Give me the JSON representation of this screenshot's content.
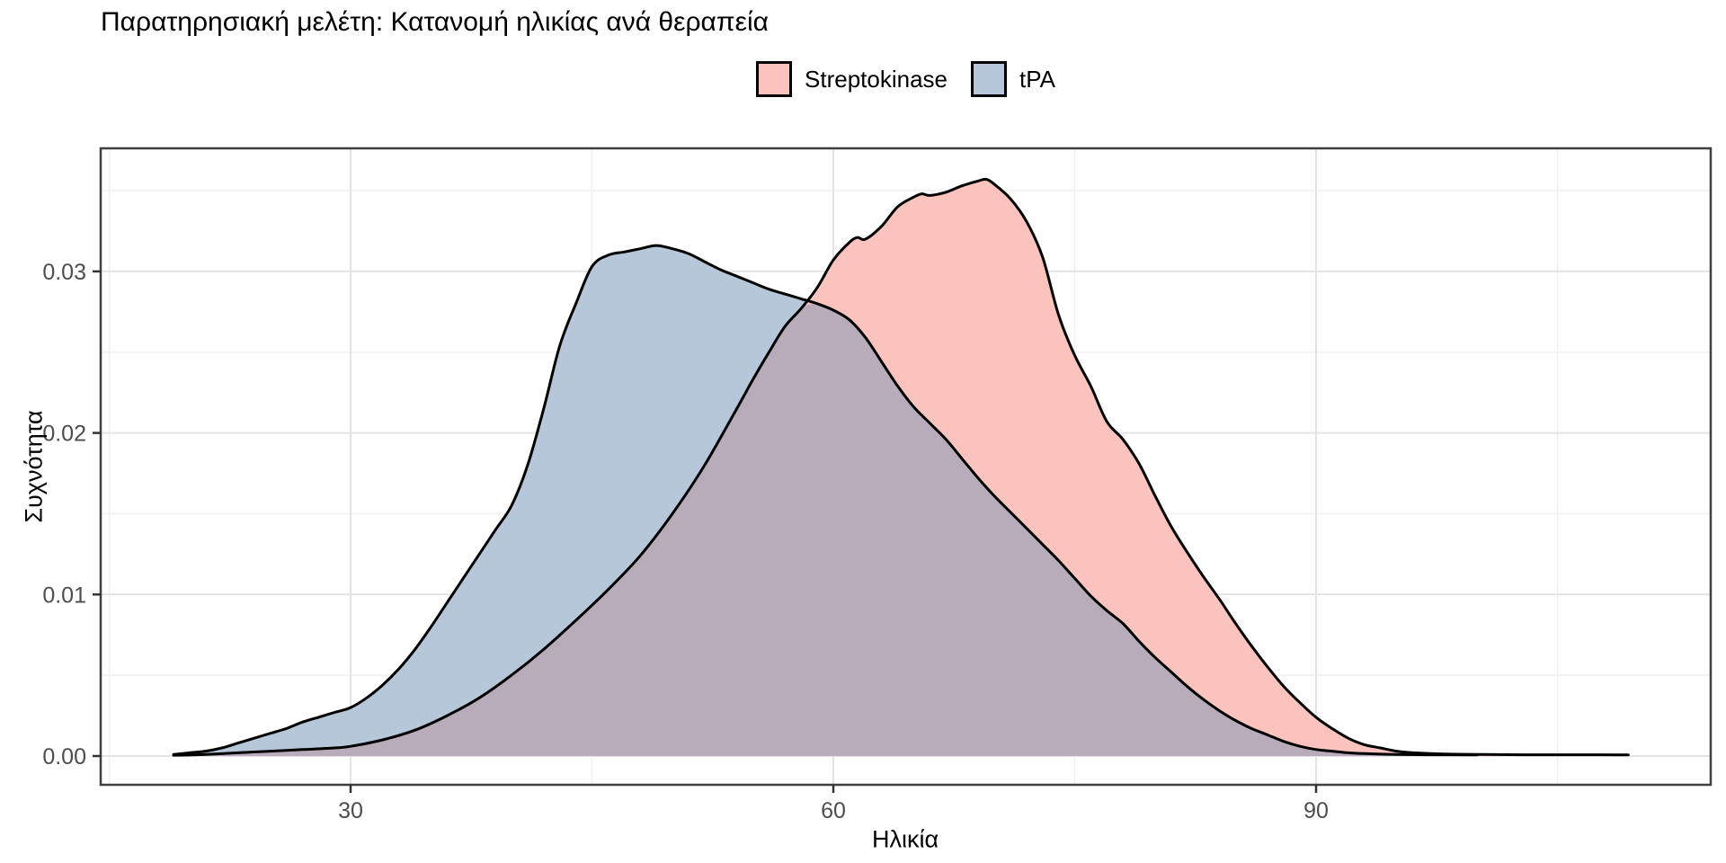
{
  "title": "Παρατηρησιακή μελέτη: Κατανομή ηλικίας ανά θεραπεία",
  "legend": {
    "items": [
      {
        "label": "Streptokinase",
        "color": "#FAC3BD"
      },
      {
        "label": "tPA",
        "color": "#B6C7D9"
      }
    ]
  },
  "axes": {
    "x": {
      "title": "Ηλικία",
      "tick_labels": [
        "30",
        "60",
        "90"
      ]
    },
    "y": {
      "title": "Συχνότητα",
      "tick_labels": [
        "0.00",
        "0.01",
        "0.02",
        "0.03"
      ]
    }
  },
  "colors": {
    "fill_streptokinase": "#FAC3BD",
    "fill_tpa": "#B6C7D9",
    "fill_overlap": "#B8ABBA",
    "curve_stroke": "#000000",
    "grid_major": "#E4E4E4",
    "grid_minor": "#F1F1F1",
    "panel_border": "#3F3F3F",
    "tick_mark": "#333333",
    "tick_label": "#4D4D4D"
  },
  "chart_data": {
    "type": "area",
    "subtype": "density",
    "title": "Παρατηρησιακή μελέτη: Κατανομή ηλικίας ανά θεραπεία",
    "xlabel": "Ηλικία",
    "ylabel": "Συχνότητα",
    "xlim": [
      14.5,
      114.6
    ],
    "ylim": [
      0,
      0.0375
    ],
    "x_ticks": [
      30,
      60,
      90
    ],
    "x_minor_ticks": [
      15,
      45,
      75,
      105
    ],
    "y_ticks": [
      0,
      0.01,
      0.02,
      0.03
    ],
    "y_minor_ticks": [
      0.005,
      0.015,
      0.025,
      0.035
    ],
    "grid": true,
    "legend_position": "top",
    "series": [
      {
        "name": "tPA",
        "peak": {
          "x": 49,
          "y": 0.0316
        },
        "points": [
          [
            19,
            0.0001
          ],
          [
            20,
            0.0002
          ],
          [
            21,
            0.0003
          ],
          [
            22,
            0.0005
          ],
          [
            23,
            0.0008
          ],
          [
            24,
            0.0011
          ],
          [
            25,
            0.0014
          ],
          [
            26,
            0.0017
          ],
          [
            27,
            0.0021
          ],
          [
            28,
            0.0024
          ],
          [
            29,
            0.0027
          ],
          [
            30,
            0.003
          ],
          [
            31,
            0.0036
          ],
          [
            32,
            0.0044
          ],
          [
            33,
            0.0054
          ],
          [
            34,
            0.0066
          ],
          [
            35,
            0.008
          ],
          [
            36,
            0.0095
          ],
          [
            37,
            0.011
          ],
          [
            38,
            0.0125
          ],
          [
            39,
            0.014
          ],
          [
            40,
            0.0155
          ],
          [
            41,
            0.018
          ],
          [
            42,
            0.0215
          ],
          [
            43,
            0.0254
          ],
          [
            44,
            0.028
          ],
          [
            45,
            0.0303
          ],
          [
            46,
            0.031
          ],
          [
            47,
            0.0312
          ],
          [
            48,
            0.0314
          ],
          [
            49,
            0.0316
          ],
          [
            50,
            0.0314
          ],
          [
            51,
            0.0311
          ],
          [
            52,
            0.0306
          ],
          [
            53,
            0.0301
          ],
          [
            54,
            0.0297
          ],
          [
            55,
            0.0293
          ],
          [
            56,
            0.0289
          ],
          [
            57,
            0.0286
          ],
          [
            58,
            0.0283
          ],
          [
            59,
            0.028
          ],
          [
            60,
            0.0276
          ],
          [
            61,
            0.027
          ],
          [
            62,
            0.0259
          ],
          [
            63,
            0.0244
          ],
          [
            64,
            0.0229
          ],
          [
            65,
            0.0216
          ],
          [
            66,
            0.0206
          ],
          [
            67,
            0.0196
          ],
          [
            68,
            0.0184
          ],
          [
            69,
            0.0172
          ],
          [
            70,
            0.0161
          ],
          [
            71,
            0.0151
          ],
          [
            72,
            0.0141
          ],
          [
            73,
            0.0131
          ],
          [
            74,
            0.0121
          ],
          [
            75,
            0.011
          ],
          [
            76,
            0.0099
          ],
          [
            77,
            0.009
          ],
          [
            78,
            0.0082
          ],
          [
            79,
            0.0071
          ],
          [
            80,
            0.0061
          ],
          [
            81,
            0.0052
          ],
          [
            82,
            0.0043
          ],
          [
            83,
            0.0035
          ],
          [
            84,
            0.0028
          ],
          [
            85,
            0.0022
          ],
          [
            86,
            0.0017
          ],
          [
            87,
            0.0013
          ],
          [
            88,
            0.0009
          ],
          [
            89,
            0.0006
          ],
          [
            90,
            0.0004
          ],
          [
            91,
            0.0003
          ],
          [
            92,
            0.0002
          ],
          [
            93,
            0.00015
          ],
          [
            95,
            0.0001
          ],
          [
            97,
            8e-05
          ],
          [
            100,
            7e-05
          ]
        ]
      },
      {
        "name": "Streptokinase",
        "peak": {
          "x": 69.5,
          "y": 0.0357
        },
        "points": [
          [
            19,
            5e-05
          ],
          [
            21,
            0.0001
          ],
          [
            23,
            0.0002
          ],
          [
            25,
            0.0003
          ],
          [
            27,
            0.0004
          ],
          [
            29,
            0.0005
          ],
          [
            30,
            0.0006
          ],
          [
            32,
            0.001
          ],
          [
            34,
            0.0016
          ],
          [
            36,
            0.0025
          ],
          [
            38,
            0.0036
          ],
          [
            40,
            0.005
          ],
          [
            42,
            0.0066
          ],
          [
            44,
            0.0084
          ],
          [
            46,
            0.0103
          ],
          [
            48,
            0.0124
          ],
          [
            50,
            0.015
          ],
          [
            52,
            0.018
          ],
          [
            54,
            0.0215
          ],
          [
            55,
            0.0233
          ],
          [
            56,
            0.025
          ],
          [
            57,
            0.0266
          ],
          [
            58,
            0.0277
          ],
          [
            59,
            0.029
          ],
          [
            60,
            0.0307
          ],
          [
            61,
            0.0318
          ],
          [
            61.5,
            0.0321
          ],
          [
            62,
            0.032
          ],
          [
            63,
            0.0328
          ],
          [
            64,
            0.034
          ],
          [
            65,
            0.0346
          ],
          [
            65.5,
            0.0348
          ],
          [
            66,
            0.0347
          ],
          [
            67,
            0.0349
          ],
          [
            68,
            0.0353
          ],
          [
            69,
            0.0356
          ],
          [
            69.5,
            0.0357
          ],
          [
            70,
            0.0354
          ],
          [
            71,
            0.0345
          ],
          [
            72,
            0.0331
          ],
          [
            73,
            0.0309
          ],
          [
            74,
            0.0273
          ],
          [
            75,
            0.0248
          ],
          [
            76,
            0.0229
          ],
          [
            77,
            0.0207
          ],
          [
            78,
            0.0196
          ],
          [
            79,
            0.0181
          ],
          [
            80,
            0.0161
          ],
          [
            81,
            0.0142
          ],
          [
            82,
            0.0126
          ],
          [
            83,
            0.0111
          ],
          [
            84,
            0.0097
          ],
          [
            85,
            0.0082
          ],
          [
            86,
            0.0068
          ],
          [
            87,
            0.0055
          ],
          [
            88,
            0.0043
          ],
          [
            89,
            0.0033
          ],
          [
            90,
            0.0024
          ],
          [
            91,
            0.0017
          ],
          [
            92,
            0.0011
          ],
          [
            93,
            0.0007
          ],
          [
            94,
            0.0005
          ],
          [
            95,
            0.0003
          ],
          [
            96,
            0.0002
          ],
          [
            98,
            0.00012
          ],
          [
            100,
            0.0001
          ],
          [
            103,
            8e-05
          ],
          [
            106,
            8e-05
          ],
          [
            109.4,
            7e-05
          ]
        ]
      }
    ],
    "crossing_point": {
      "x": 58.5,
      "y": 0.0282
    }
  }
}
